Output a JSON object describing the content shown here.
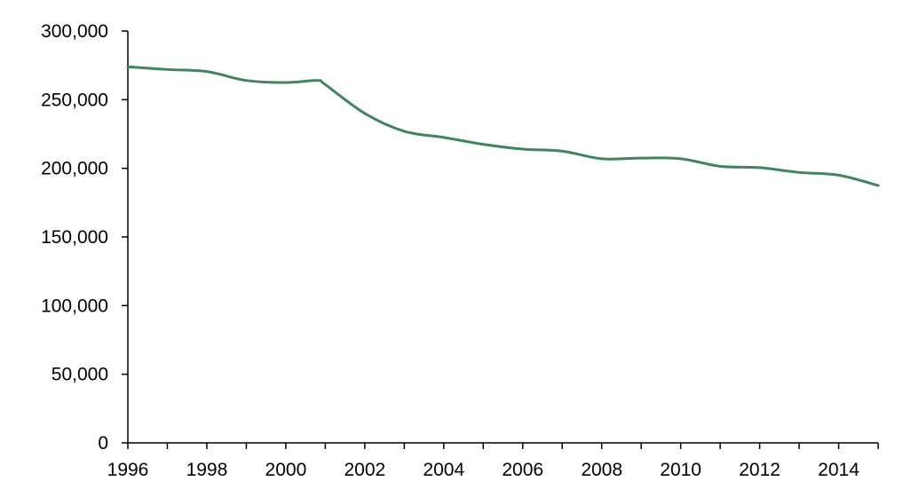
{
  "chart_data": {
    "type": "line",
    "title": "",
    "xlabel": "",
    "ylabel": "",
    "xlim": [
      1996,
      2015
    ],
    "ylim": [
      0,
      300000
    ],
    "x_ticks": [
      1996,
      1998,
      2000,
      2002,
      2004,
      2006,
      2008,
      2010,
      2012,
      2014
    ],
    "x_tick_labels": [
      "1996",
      "1998",
      "2000",
      "2002",
      "2004",
      "2006",
      "2008",
      "2010",
      "2012",
      "2014"
    ],
    "y_ticks": [
      0,
      50000,
      100000,
      150000,
      200000,
      250000,
      300000
    ],
    "y_tick_labels": [
      "0",
      "50,000",
      "100,000",
      "150,000",
      "200,000",
      "250,000",
      "300,000"
    ],
    "grid": false,
    "legend": "none",
    "series": [
      {
        "color": "#3f8560",
        "x": [
          1996,
          1997,
          1998,
          1999,
          2000,
          2000.8,
          2001,
          2002,
          2003,
          2004,
          2005,
          2006,
          2007,
          2008,
          2009,
          2010,
          2011,
          2012,
          2013,
          2014,
          2015
        ],
        "y": [
          274000,
          272000,
          270500,
          264000,
          262500,
          264000,
          261000,
          240000,
          227000,
          222500,
          217500,
          214000,
          212500,
          207000,
          207500,
          207000,
          201500,
          200500,
          197000,
          195000,
          187500
        ]
      }
    ]
  }
}
